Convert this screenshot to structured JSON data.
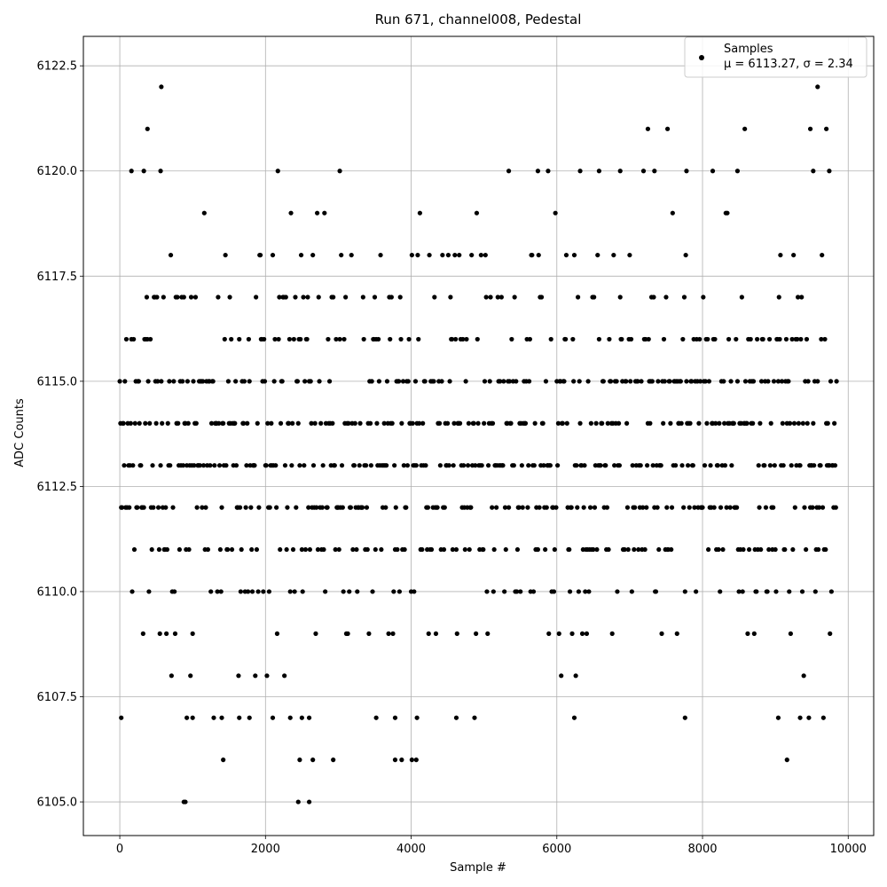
{
  "chart_data": {
    "type": "scatter",
    "title": "Run 671, channel008, Pedestal",
    "xlabel": "Sample #",
    "ylabel": "ADC Counts",
    "xlim": [
      -500,
      10350
    ],
    "ylim": [
      6104.2,
      6123.2
    ],
    "xticks": [
      0,
      2000,
      4000,
      6000,
      8000,
      10000
    ],
    "yticks": [
      6105.0,
      6107.5,
      6110.0,
      6112.5,
      6115.0,
      6117.5,
      6120.0,
      6122.5
    ],
    "ytick_labels": [
      "6105.0",
      "6107.5",
      "6110.0",
      "6112.5",
      "6115.0",
      "6117.5",
      "6120.0",
      "6122.5"
    ],
    "grid": true,
    "legend_position": "top-right",
    "series": [
      {
        "name": "Samples",
        "stat_label": "μ = 6113.27, σ = 2.34",
        "color": "#000000",
        "x_start": 0,
        "x_step": 10,
        "n_points": 985,
        "mean": 6113.27,
        "sigma": 2.34,
        "outliers": [
          [
            880,
            6105
          ],
          [
            900,
            6105
          ],
          [
            2450,
            6105
          ],
          [
            2600,
            6105
          ],
          [
            570,
            6122
          ],
          [
            9580,
            6122
          ],
          [
            380,
            6121
          ],
          [
            7250,
            6121
          ],
          [
            7520,
            6121
          ],
          [
            8580,
            6121
          ],
          [
            9480,
            6121
          ],
          [
            9700,
            6121
          ],
          [
            160,
            6120
          ],
          [
            330,
            6120
          ],
          [
            560,
            6120
          ],
          [
            3020,
            6120
          ],
          [
            5340,
            6120
          ],
          [
            5740,
            6120
          ],
          [
            5880,
            6120
          ],
          [
            6320,
            6120
          ],
          [
            6580,
            6120
          ],
          [
            6870,
            6120
          ],
          [
            7340,
            6120
          ],
          [
            7780,
            6120
          ],
          [
            8140,
            6120
          ],
          [
            8480,
            6120
          ],
          [
            9520,
            6120
          ],
          [
            9740,
            6120
          ],
          [
            1420,
            6106
          ],
          [
            2470,
            6106
          ],
          [
            2650,
            6106
          ],
          [
            2930,
            6106
          ],
          [
            3780,
            6106
          ],
          [
            3870,
            6106
          ],
          [
            4010,
            6106
          ],
          [
            4070,
            6106
          ],
          [
            9160,
            6106
          ],
          [
            20,
            6107
          ],
          [
            920,
            6107
          ],
          [
            1000,
            6107
          ],
          [
            1400,
            6107
          ],
          [
            1640,
            6107
          ],
          [
            1780,
            6107
          ],
          [
            2100,
            6107
          ],
          [
            2340,
            6107
          ],
          [
            2500,
            6107
          ],
          [
            2600,
            6107
          ],
          [
            3520,
            6107
          ],
          [
            3780,
            6107
          ],
          [
            4080,
            6107
          ],
          [
            4620,
            6107
          ],
          [
            6240,
            6107
          ],
          [
            7760,
            6107
          ],
          [
            9040,
            6107
          ],
          [
            9340,
            6107
          ]
        ]
      }
    ]
  }
}
